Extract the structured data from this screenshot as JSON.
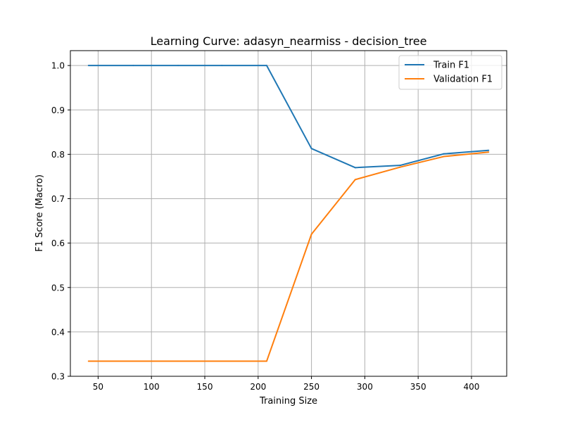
{
  "chart_data": {
    "type": "line",
    "title": "Learning Curve: adasyn_nearmiss - decision_tree",
    "xlabel": "Training Size",
    "ylabel": "F1 Score (Macro)",
    "xlim": [
      24,
      433
    ],
    "ylim": [
      0.3,
      1.0335
    ],
    "xticks": [
      50,
      100,
      150,
      200,
      250,
      300,
      350,
      400
    ],
    "yticks": [
      0.3,
      0.4,
      0.5,
      0.6,
      0.7,
      0.8,
      0.9,
      1.0
    ],
    "ytick_labels": [
      "0.3",
      "0.4",
      "0.5",
      "0.6",
      "0.7",
      "0.8",
      "0.9",
      "1.0"
    ],
    "grid": true,
    "legend_position": "upper right",
    "x": [
      41,
      83,
      125,
      166,
      208,
      250,
      291,
      333,
      374,
      416
    ],
    "series": [
      {
        "name": "Train F1",
        "color": "#1f77b4",
        "values": [
          1.0,
          1.0,
          1.0,
          1.0,
          1.0,
          0.813,
          0.77,
          0.775,
          0.801,
          0.809
        ]
      },
      {
        "name": "Validation F1",
        "color": "#ff7f0e",
        "values": [
          0.334,
          0.334,
          0.334,
          0.334,
          0.334,
          0.62,
          0.743,
          0.771,
          0.795,
          0.805
        ]
      }
    ]
  }
}
